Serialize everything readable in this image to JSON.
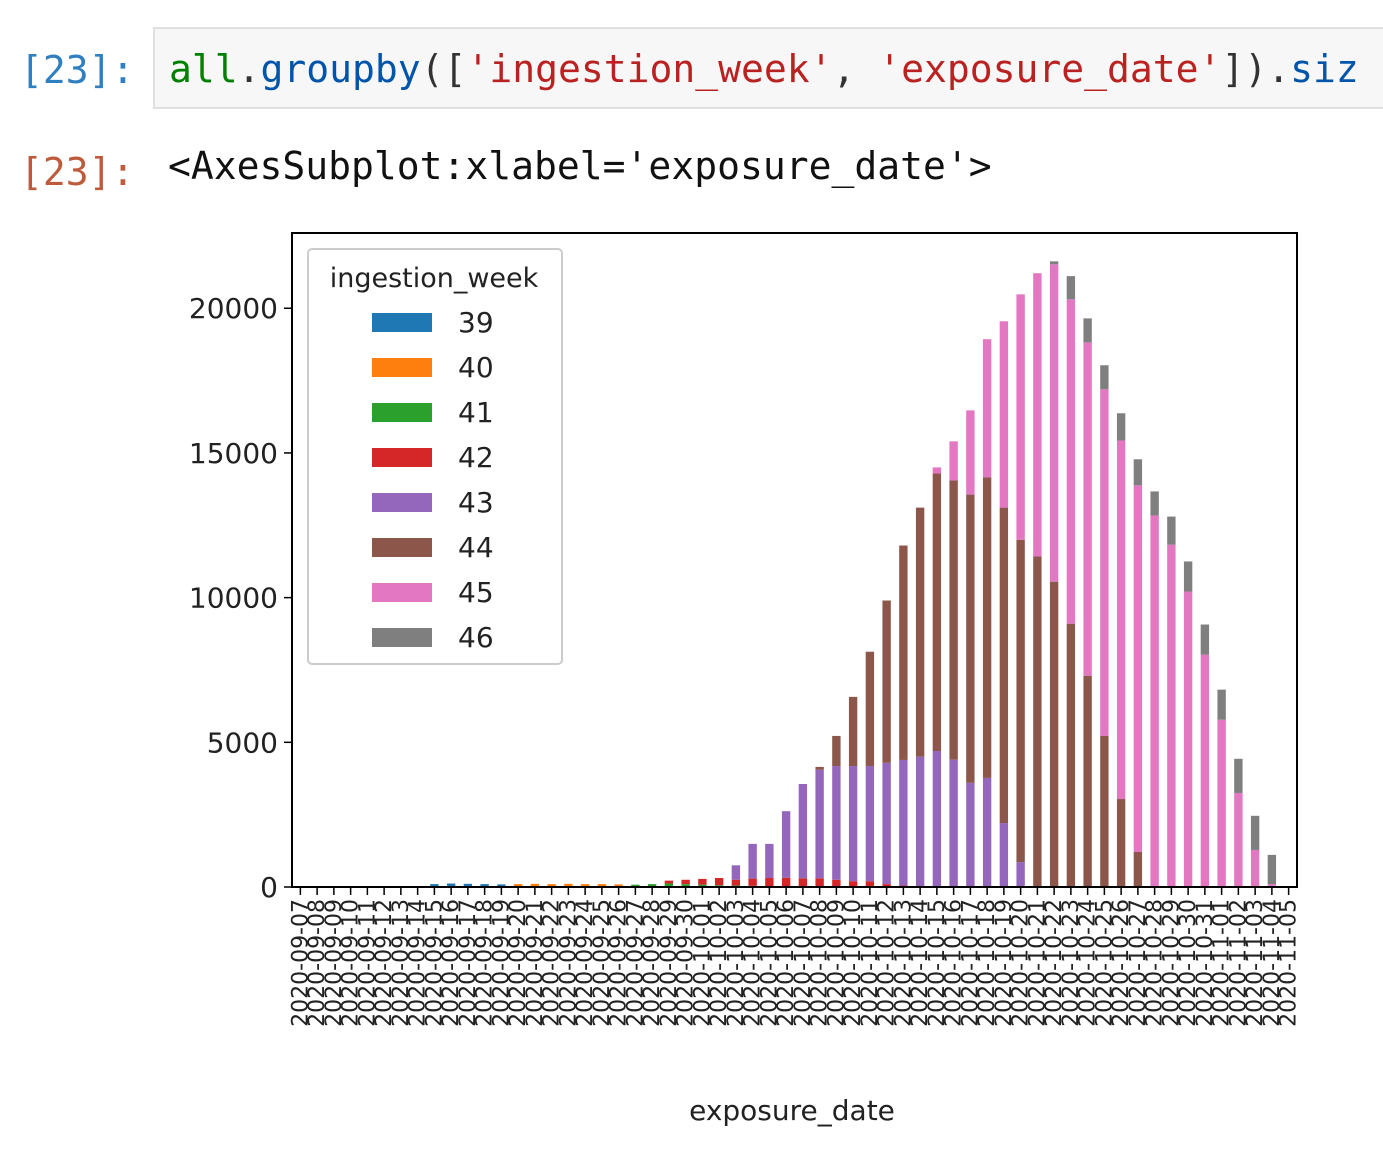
{
  "input": {
    "prompt": "[23]:",
    "prompt_color": "#307fc1",
    "tokens": [
      {
        "text": "all",
        "color": "#008000"
      },
      {
        "text": ".",
        "color": "#333333"
      },
      {
        "text": "groupby",
        "color": "#0055aa"
      },
      {
        "text": "([",
        "color": "#333333"
      },
      {
        "text": "'ingestion_week'",
        "color": "#ba2121"
      },
      {
        "text": ", ",
        "color": "#333333"
      },
      {
        "text": "'exposure_date'",
        "color": "#ba2121"
      },
      {
        "text": "]).",
        "color": "#333333"
      },
      {
        "text": "siz",
        "color": "#0055aa"
      }
    ]
  },
  "output": {
    "prompt": "[23]:",
    "prompt_color": "#bf5b3d",
    "text": "<AxesSubplot:xlabel='exposure_date'>"
  },
  "chart_data": {
    "type": "stacked_bar",
    "xlabel": "exposure_date",
    "legend_title": "ingestion_week",
    "legend_loc": "upper left",
    "categories": [
      "2020-09-07",
      "2020-09-08",
      "2020-09-09",
      "2020-09-10",
      "2020-09-11",
      "2020-09-12",
      "2020-09-13",
      "2020-09-14",
      "2020-09-15",
      "2020-09-16",
      "2020-09-17",
      "2020-09-18",
      "2020-09-19",
      "2020-09-20",
      "2020-09-21",
      "2020-09-22",
      "2020-09-23",
      "2020-09-24",
      "2020-09-25",
      "2020-09-26",
      "2020-09-27",
      "2020-09-28",
      "2020-09-29",
      "2020-09-30",
      "2020-10-01",
      "2020-10-02",
      "2020-10-03",
      "2020-10-04",
      "2020-10-05",
      "2020-10-06",
      "2020-10-07",
      "2020-10-08",
      "2020-10-09",
      "2020-10-10",
      "2020-10-11",
      "2020-10-12",
      "2020-10-13",
      "2020-10-14",
      "2020-10-15",
      "2020-10-16",
      "2020-10-17",
      "2020-10-18",
      "2020-10-19",
      "2020-10-20",
      "2020-10-21",
      "2020-10-22",
      "2020-10-23",
      "2020-10-24",
      "2020-10-25",
      "2020-10-26",
      "2020-10-27",
      "2020-10-28",
      "2020-10-29",
      "2020-10-30",
      "2020-10-31",
      "2020-11-01",
      "2020-11-02",
      "2020-11-03",
      "2020-11-04",
      "2020-11-05"
    ],
    "ylim": [
      0,
      22600
    ],
    "yticks": [
      0,
      5000,
      10000,
      15000,
      20000
    ],
    "series": [
      {
        "name": "39",
        "color": "#1f77b4",
        "values": [
          0,
          0,
          0,
          0,
          0,
          0,
          0,
          0,
          100,
          120,
          110,
          100,
          90,
          0,
          0,
          0,
          0,
          0,
          0,
          0,
          0,
          0,
          0,
          0,
          0,
          0,
          0,
          0,
          0,
          0,
          0,
          0,
          0,
          0,
          0,
          0,
          0,
          0,
          0,
          0,
          0,
          0,
          0,
          0,
          0,
          0,
          0,
          0,
          0,
          0,
          0,
          0,
          0,
          0,
          0,
          0,
          0,
          0,
          0,
          0
        ]
      },
      {
        "name": "40",
        "color": "#ff7f0e",
        "values": [
          0,
          0,
          0,
          0,
          0,
          0,
          0,
          0,
          0,
          0,
          0,
          0,
          0,
          100,
          110,
          100,
          110,
          100,
          100,
          90,
          0,
          0,
          0,
          0,
          0,
          0,
          0,
          0,
          0,
          0,
          0,
          0,
          0,
          0,
          0,
          0,
          0,
          0,
          0,
          0,
          0,
          0,
          0,
          0,
          0,
          0,
          0,
          0,
          0,
          0,
          0,
          0,
          0,
          0,
          0,
          0,
          0,
          0,
          0,
          0
        ]
      },
      {
        "name": "41",
        "color": "#2ca02c",
        "values": [
          0,
          0,
          0,
          0,
          0,
          0,
          0,
          0,
          0,
          0,
          0,
          0,
          0,
          0,
          0,
          0,
          0,
          0,
          0,
          0,
          80,
          100,
          120,
          100,
          80,
          60,
          50,
          40,
          30,
          20,
          0,
          0,
          0,
          0,
          0,
          0,
          0,
          0,
          0,
          0,
          0,
          0,
          0,
          0,
          0,
          0,
          0,
          0,
          0,
          0,
          0,
          0,
          0,
          0,
          0,
          0,
          0,
          0,
          0,
          0
        ]
      },
      {
        "name": "42",
        "color": "#d62728",
        "values": [
          0,
          0,
          0,
          0,
          0,
          0,
          0,
          0,
          0,
          0,
          0,
          0,
          0,
          0,
          0,
          0,
          0,
          0,
          0,
          0,
          0,
          0,
          100,
          150,
          200,
          250,
          200,
          250,
          280,
          300,
          300,
          300,
          250,
          200,
          200,
          100,
          50,
          0,
          0,
          0,
          0,
          0,
          0,
          0,
          0,
          0,
          0,
          0,
          0,
          0,
          0,
          0,
          0,
          0,
          0,
          0,
          0,
          0,
          0,
          0
        ]
      },
      {
        "name": "43",
        "color": "#9467bd",
        "values": [
          0,
          0,
          0,
          0,
          0,
          0,
          0,
          0,
          0,
          0,
          0,
          0,
          0,
          0,
          0,
          0,
          0,
          0,
          0,
          0,
          0,
          0,
          0,
          0,
          0,
          0,
          500,
          1200,
          1180,
          2300,
          3260,
          3750,
          3930,
          3980,
          3980,
          4190,
          4340,
          4500,
          4700,
          4400,
          3600,
          3770,
          2210,
          860,
          0,
          0,
          0,
          0,
          0,
          0,
          0,
          0,
          0,
          0,
          0,
          0,
          0,
          0,
          0,
          0
        ]
      },
      {
        "name": "44",
        "color": "#8c564b",
        "values": [
          0,
          0,
          0,
          0,
          0,
          0,
          0,
          0,
          0,
          0,
          0,
          0,
          0,
          0,
          0,
          0,
          0,
          0,
          0,
          0,
          0,
          0,
          0,
          0,
          0,
          0,
          0,
          0,
          0,
          0,
          0,
          100,
          1040,
          2390,
          3950,
          5610,
          7410,
          8610,
          9590,
          9650,
          9960,
          10380,
          10900,
          11140,
          11420,
          10550,
          9100,
          7300,
          5220,
          3040,
          1210,
          0,
          0,
          0,
          0,
          0,
          0,
          0,
          0,
          0
        ]
      },
      {
        "name": "45",
        "color": "#e377c2",
        "values": [
          0,
          0,
          0,
          0,
          0,
          0,
          0,
          0,
          0,
          0,
          0,
          0,
          0,
          0,
          0,
          0,
          0,
          0,
          0,
          0,
          0,
          0,
          0,
          0,
          0,
          0,
          0,
          0,
          0,
          0,
          0,
          0,
          0,
          0,
          0,
          0,
          0,
          0,
          210,
          1350,
          2910,
          4780,
          6440,
          8480,
          9790,
          10970,
          11210,
          11520,
          11980,
          12390,
          12670,
          12840,
          11830,
          10210,
          8030,
          5780,
          3250,
          1280,
          100,
          0
        ]
      },
      {
        "name": "46",
        "color": "#7f7f7f",
        "values": [
          0,
          0,
          0,
          0,
          0,
          0,
          0,
          0,
          0,
          0,
          0,
          0,
          0,
          0,
          0,
          0,
          0,
          0,
          0,
          0,
          0,
          0,
          0,
          0,
          0,
          0,
          0,
          0,
          0,
          0,
          0,
          0,
          0,
          0,
          0,
          0,
          0,
          0,
          0,
          0,
          0,
          0,
          0,
          0,
          0,
          100,
          800,
          830,
          830,
          940,
          900,
          830,
          970,
          1040,
          1040,
          1040,
          1180,
          1180,
          1010,
          0
        ]
      }
    ]
  }
}
